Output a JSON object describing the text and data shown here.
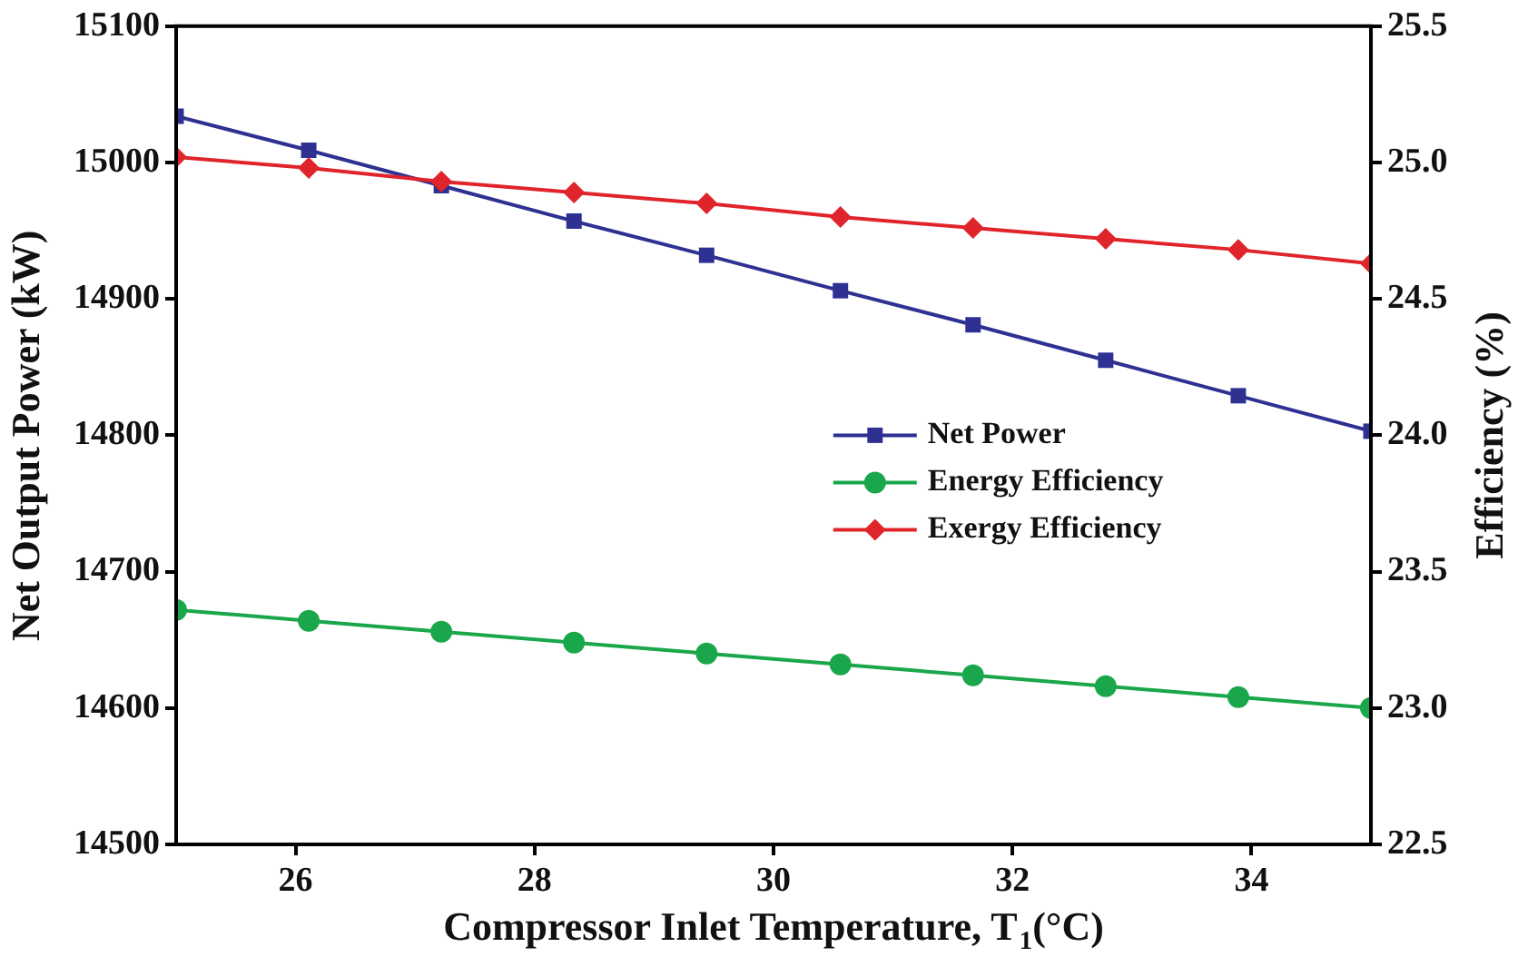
{
  "chart_data": {
    "type": "line",
    "xlabel": "Compressor Inlet Temperature, T$_{1}$(°C)",
    "ylabel": "Net Output Power (kW)",
    "y2label": "Efficiency (%)",
    "x": [
      25,
      26.11,
      27.22,
      28.33,
      29.44,
      30.56,
      31.67,
      32.78,
      33.89,
      35
    ],
    "xlim": [
      25,
      35
    ],
    "xticks": [
      26,
      28,
      30,
      32,
      34
    ],
    "ylim": [
      14500,
      15100
    ],
    "yticks": [
      14500,
      14600,
      14700,
      14800,
      14900,
      15000,
      15100
    ],
    "y2lim": [
      22.5,
      25.5
    ],
    "y2ticks": [
      {
        "value": 22.5,
        "label": "22.5"
      },
      {
        "value": 23,
        "label": "23.0"
      },
      {
        "value": 23.5,
        "label": "23.5"
      },
      {
        "value": 24,
        "label": "24.0"
      },
      {
        "value": 24.5,
        "label": "24.5"
      },
      {
        "value": 25,
        "label": "25.0"
      },
      {
        "value": 25.5,
        "label": "25.5"
      }
    ],
    "series": [
      {
        "name": "Net Power",
        "color": "#2e3192",
        "marker": "square",
        "values": [
          15034,
          15009,
          14983,
          14957,
          14932,
          14906,
          14881,
          14855,
          14829,
          14803
        ]
      },
      {
        "name": "Energy Efficiency",
        "color": "#1aa64a",
        "marker": "circle",
        "axis": "y2",
        "values": [
          23.36,
          23.32,
          23.28,
          23.24,
          23.2,
          23.16,
          23.12,
          23.08,
          23.04,
          23.0
        ]
      },
      {
        "name": "Exergy Efficiency",
        "color": "#e0242b",
        "marker": "diamond",
        "axis": "y2",
        "values": [
          25.02,
          24.98,
          24.93,
          24.89,
          24.85,
          24.8,
          24.76,
          24.72,
          24.68,
          24.63
        ]
      }
    ],
    "grid": false,
    "legend": "right"
  }
}
